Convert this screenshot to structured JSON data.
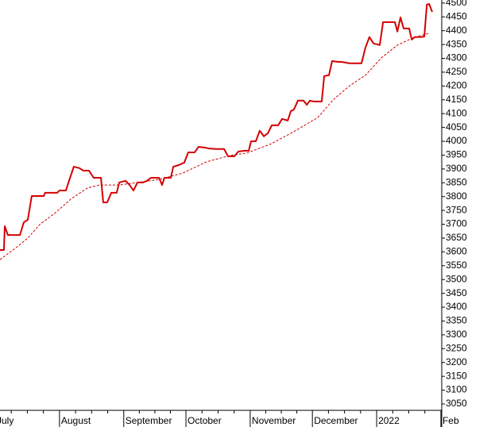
{
  "chart_data": {
    "type": "line",
    "xlim": [
      2.3,
      215.4
    ],
    "ylim": [
      3027,
      4511
    ],
    "xticks": [
      {
        "value": 0,
        "label": "July"
      },
      {
        "value": 31,
        "label": "August"
      },
      {
        "value": 62,
        "label": "September"
      },
      {
        "value": 92,
        "label": "October"
      },
      {
        "value": 123,
        "label": "November"
      },
      {
        "value": 153,
        "label": "December"
      },
      {
        "value": 184,
        "label": "2022"
      },
      {
        "value": 215,
        "label": "Feb"
      }
    ],
    "yticks": [
      3050,
      3100,
      3150,
      3200,
      3250,
      3300,
      3350,
      3400,
      3450,
      3500,
      3550,
      3600,
      3650,
      3700,
      3750,
      3800,
      3850,
      3900,
      3950,
      4000,
      4050,
      4100,
      4150,
      4200,
      4250,
      4300,
      4350,
      4400,
      4450,
      4500
    ],
    "series": [
      {
        "color": "#d40000",
        "style": "solid",
        "x": [
          2.3,
          4.2,
          4.6,
          6.1,
          11.9,
          13.8,
          15.7,
          17.6,
          23.4,
          24.1,
          29.9,
          31.0,
          34.1,
          35.6,
          37.9,
          40.6,
          42.5,
          45.2,
          47.5,
          51.0,
          52.1,
          54.0,
          56.0,
          58.6,
          59.8,
          62.9,
          64.8,
          66.7,
          68.6,
          71.3,
          73.2,
          75.1,
          79.0,
          80.5,
          81.6,
          84.7,
          85.9,
          88.5,
          91.2,
          93.1,
          96.2,
          98.1,
          101.2,
          103.1,
          106.6,
          110.4,
          112.3,
          115.4,
          117.3,
          120.4,
          122.3,
          123.4,
          125.7,
          127.6,
          129.6,
          131.5,
          133.4,
          136.5,
          138.4,
          141.1,
          142.6,
          144.1,
          146.0,
          148.7,
          150.3,
          151.8,
          153.7,
          157.5,
          158.7,
          161.0,
          162.5,
          165.6,
          167.1,
          171.0,
          174.0,
          176.7,
          178.6,
          180.5,
          182.5,
          185.5,
          187.1,
          190.1,
          192.8,
          194.0,
          195.5,
          197.0,
          199.7,
          200.9,
          202.4,
          205.5,
          207.0,
          208.2,
          209.3,
          210.8
        ],
        "values": [
          3607,
          3607,
          3693,
          3661,
          3661,
          3707,
          3716,
          3802,
          3802,
          3814,
          3814,
          3822,
          3822,
          3857,
          3908,
          3903,
          3894,
          3894,
          3868,
          3868,
          3779,
          3779,
          3814,
          3814,
          3851,
          3857,
          3842,
          3822,
          3851,
          3851,
          3857,
          3868,
          3868,
          3842,
          3868,
          3868,
          3908,
          3914,
          3923,
          3960,
          3960,
          3980,
          3977,
          3974,
          3972,
          3972,
          3946,
          3946,
          3963,
          3966,
          3966,
          4000,
          4000,
          4038,
          4018,
          4029,
          4058,
          4058,
          4081,
          4075,
          4109,
          4115,
          4147,
          4147,
          4132,
          4147,
          4144,
          4144,
          4236,
          4239,
          4290,
          4287,
          4287,
          4282,
          4282,
          4282,
          4339,
          4377,
          4354,
          4348,
          4431,
          4431,
          4431,
          4397,
          4448,
          4408,
          4408,
          4368,
          4377,
          4377,
          4379,
          4494,
          4497,
          4468
        ]
      },
      {
        "color": "#d40000",
        "style": "dashed",
        "x": [
          2.3,
          10.0,
          15.7,
          21.5,
          29.1,
          36.8,
          44.5,
          50.2,
          59.8,
          79.0,
          90.5,
          102.0,
          113.5,
          121.1,
          132.6,
          144.1,
          155.6,
          163.3,
          171.0,
          178.6,
          186.3,
          194.0,
          201.6,
          209.3
        ],
        "values": [
          3572,
          3615,
          3650,
          3699,
          3742,
          3793,
          3831,
          3842,
          3842,
          3862,
          3885,
          3926,
          3949,
          3957,
          3989,
          4035,
          4086,
          4152,
          4201,
          4239,
          4302,
          4348,
          4374,
          4391
        ]
      }
    ]
  }
}
